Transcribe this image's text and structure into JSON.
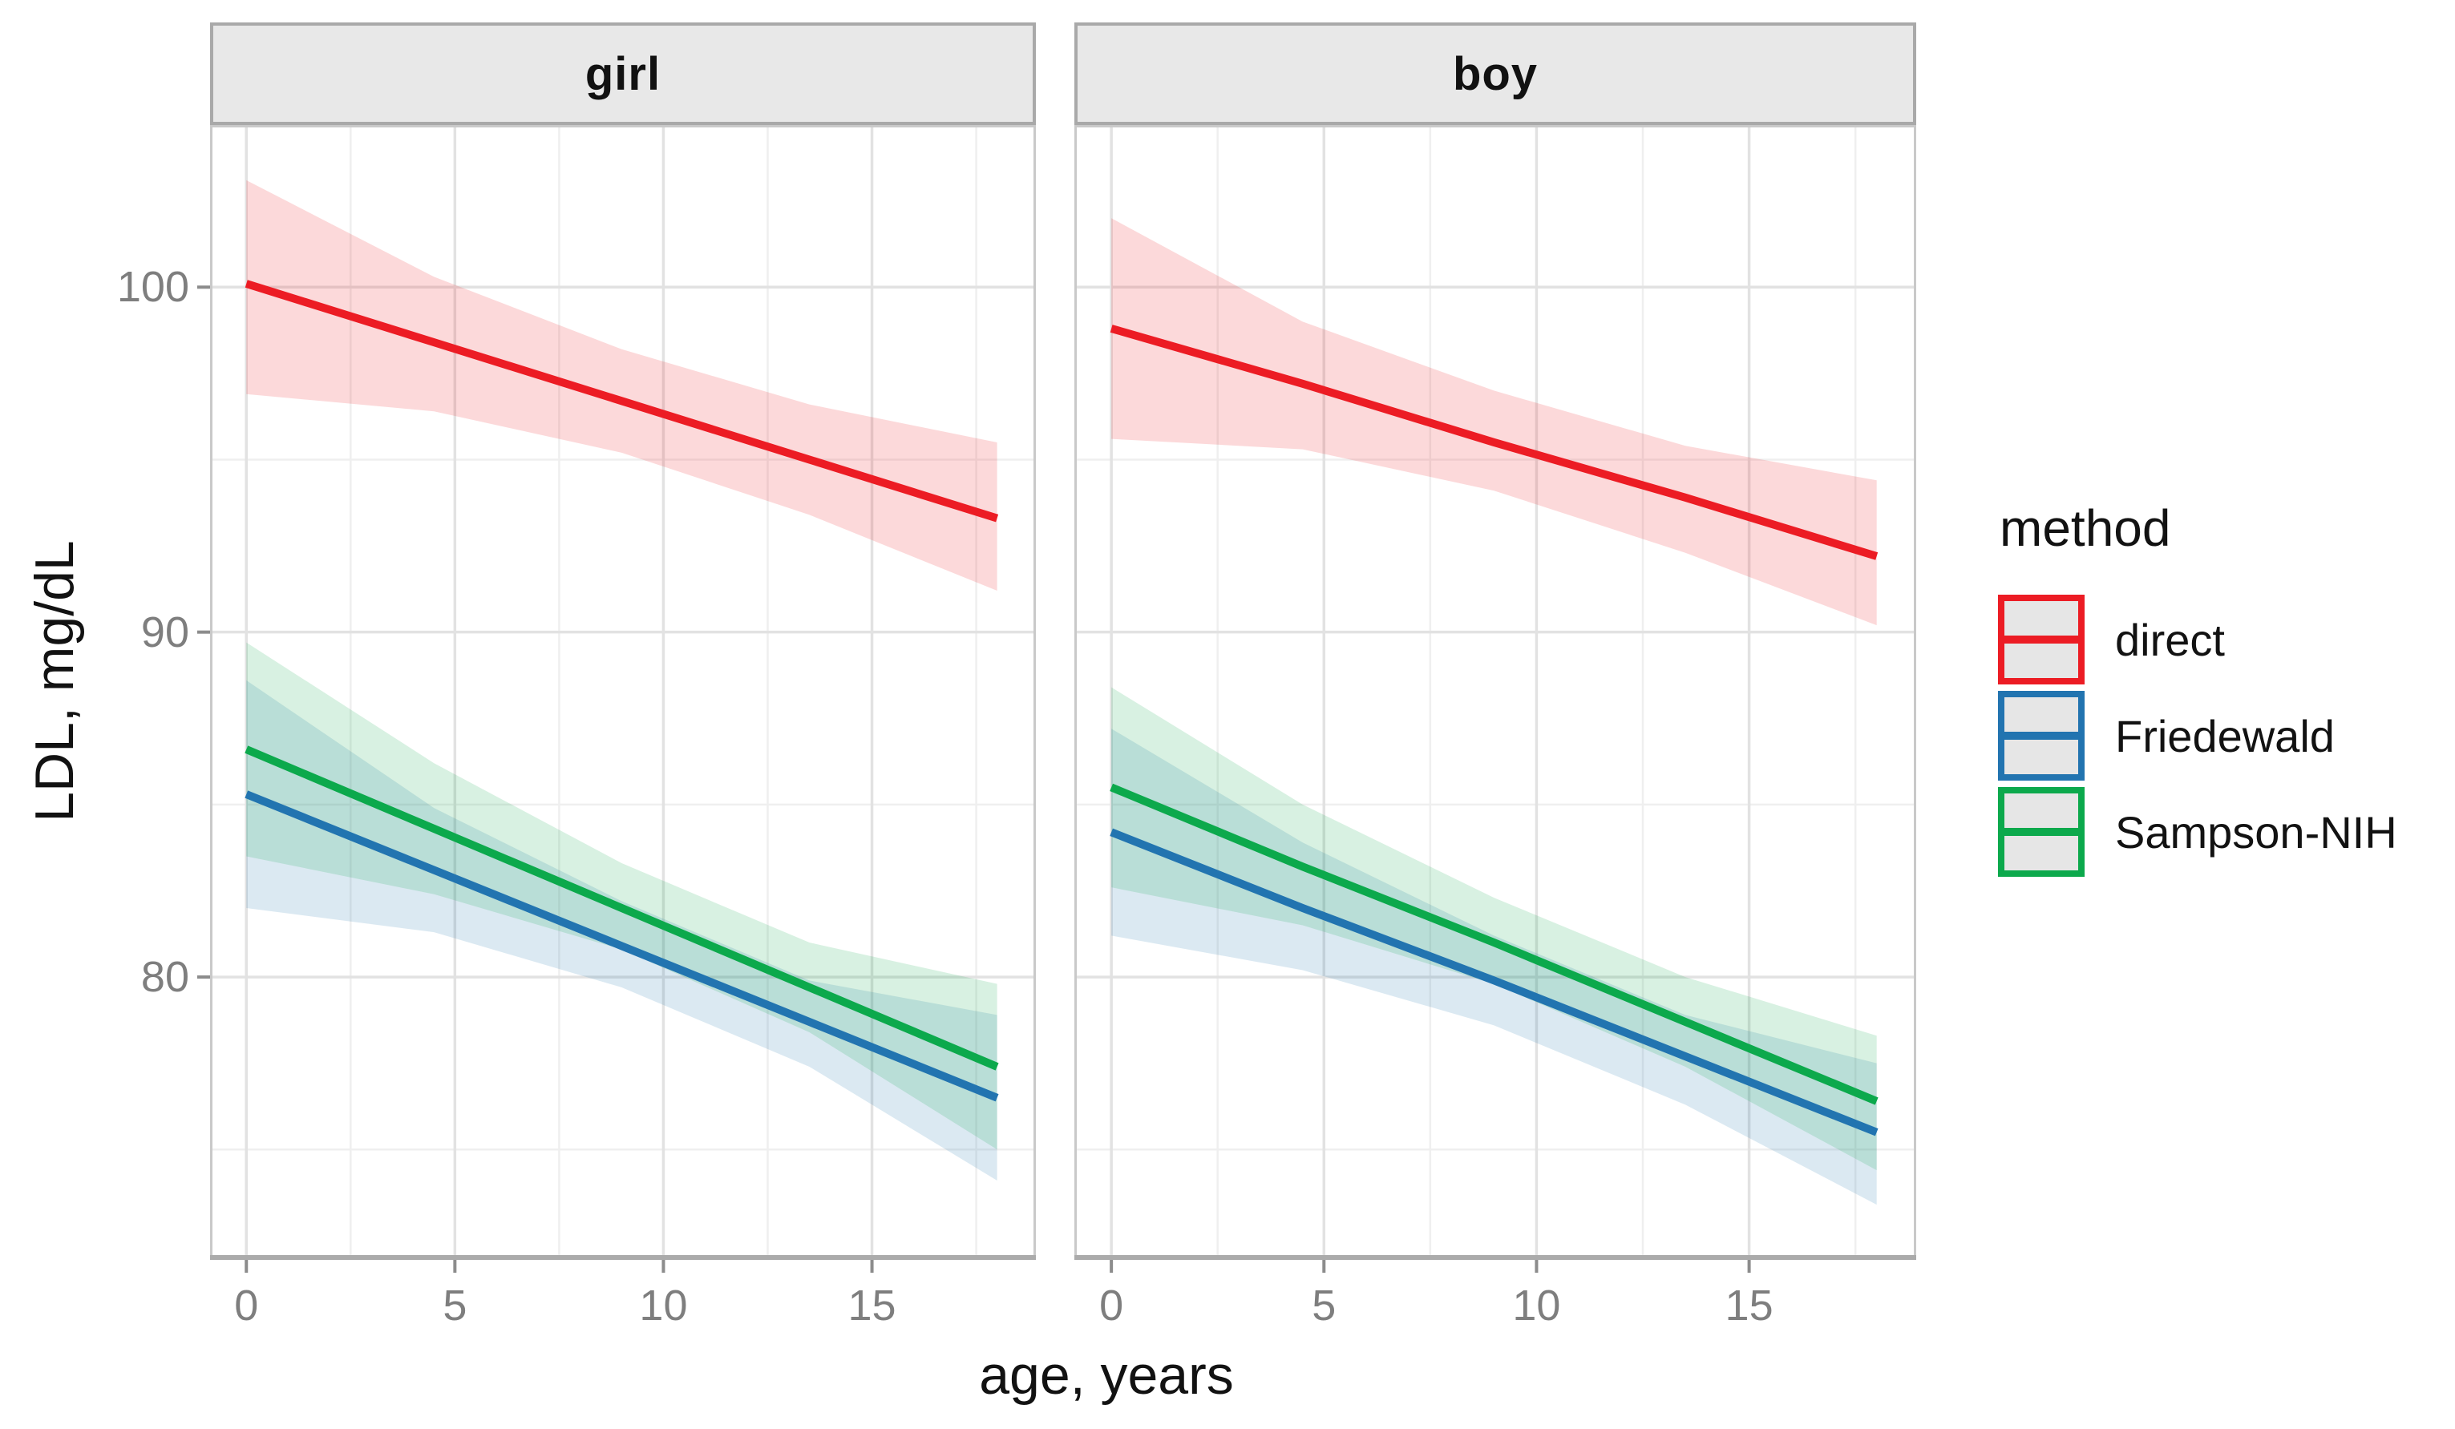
{
  "figure": {
    "background": "#FFFFFF"
  },
  "chart_data": {
    "type": "line",
    "title": "",
    "xlabel": "age, years",
    "ylabel": "LDL, mg/dL",
    "x_ticks": [
      0,
      5,
      10,
      15
    ],
    "x_minor_ticks": [
      2.5,
      7.5,
      12.5,
      17.5
    ],
    "y_ticks": [
      80,
      90,
      100
    ],
    "y_minor_ticks": [
      75,
      85,
      95
    ],
    "x_domain": [
      -0.87,
      18.93
    ],
    "y_domain": [
      71.8,
      104.7
    ],
    "grid": "on",
    "legend": {
      "title": "method",
      "position": "right",
      "entries": [
        "direct",
        "Friedewald",
        "Sampson-NIH"
      ]
    },
    "colors": {
      "direct": "#EC1C24",
      "Friedewald": "#2274B0",
      "Sampson-NIH": "#0CA94C",
      "strip_fill": "#E8E8E8",
      "strip_border": "#A9A9A9",
      "grid_major": "#E2E2E2",
      "grid_minor": "#EFEFEF",
      "panel_border": "#C9C9C9",
      "axis_line": "#ABABAB",
      "tick_mark": "#8C8C8C",
      "tick_text": "#7E7E7E"
    },
    "facets": [
      {
        "label": "girl",
        "series": [
          {
            "name": "direct",
            "color": "#EC1C24",
            "band_opacity": 0.17,
            "x": [
              0,
              4.5,
              9,
              13.5,
              18
            ],
            "y": [
              100.1,
              98.4,
              96.7,
              95.0,
              93.3
            ],
            "ci_hi": [
              103.1,
              100.3,
              98.2,
              96.6,
              95.5
            ],
            "ci_lo": [
              96.9,
              96.4,
              95.2,
              93.4,
              91.2
            ]
          },
          {
            "name": "Friedewald",
            "color": "#2274B0",
            "band_opacity": 0.16,
            "x": [
              0,
              4.5,
              9,
              13.5,
              18
            ],
            "y": [
              85.3,
              83.1,
              80.9,
              78.7,
              76.5
            ],
            "ci_hi": [
              88.6,
              84.9,
              82.2,
              79.9,
              78.9
            ],
            "ci_lo": [
              82.0,
              81.3,
              79.7,
              77.4,
              74.1
            ]
          },
          {
            "name": "Sampson-NIH",
            "color": "#0CA94C",
            "band_opacity": 0.16,
            "x": [
              0,
              4.5,
              9,
              13.5,
              18
            ],
            "y": [
              86.6,
              84.3,
              82.0,
              79.7,
              77.4
            ],
            "ci_hi": [
              89.7,
              86.2,
              83.3,
              81.0,
              79.8
            ],
            "ci_lo": [
              83.5,
              82.4,
              80.8,
              78.4,
              75.0
            ]
          }
        ]
      },
      {
        "label": "boy",
        "series": [
          {
            "name": "direct",
            "color": "#EC1C24",
            "band_opacity": 0.17,
            "x": [
              0,
              4.5,
              9,
              13.5,
              18
            ],
            "y": [
              98.8,
              97.2,
              95.5,
              93.9,
              92.2
            ],
            "ci_hi": [
              102.0,
              99.0,
              97.0,
              95.4,
              94.4
            ],
            "ci_lo": [
              95.6,
              95.3,
              94.1,
              92.3,
              90.2
            ]
          },
          {
            "name": "Friedewald",
            "color": "#2274B0",
            "band_opacity": 0.16,
            "x": [
              0,
              4.5,
              9,
              13.5,
              18
            ],
            "y": [
              84.2,
              82.0,
              79.9,
              77.7,
              75.5
            ],
            "ci_hi": [
              87.2,
              83.9,
              81.2,
              78.9,
              77.5
            ],
            "ci_lo": [
              81.2,
              80.2,
              78.6,
              76.3,
              73.4
            ]
          },
          {
            "name": "Sampson-NIH",
            "color": "#0CA94C",
            "band_opacity": 0.16,
            "x": [
              0,
              4.5,
              9,
              13.5,
              18
            ],
            "y": [
              85.5,
              83.2,
              81.0,
              78.7,
              76.4
            ],
            "ci_hi": [
              88.4,
              85.0,
              82.3,
              80.0,
              78.3
            ],
            "ci_lo": [
              82.6,
              81.5,
              79.8,
              77.4,
              74.4
            ]
          }
        ]
      }
    ]
  }
}
